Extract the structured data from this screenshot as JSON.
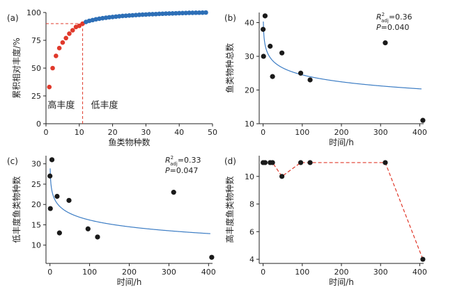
{
  "colors": {
    "red": "#e0392b",
    "blue": "#2d6fb7",
    "fit": "#3b7cc4",
    "dot": "#1a1a1a",
    "dash": "#e0392b"
  },
  "chart_data": [
    {
      "id": "a",
      "panel_label": "(a)",
      "type": "scatter",
      "xlabel": "鱼类物种数",
      "ylabel": "累积相对丰度/%",
      "xlim": [
        0,
        50
      ],
      "ylim": [
        0,
        100
      ],
      "xticks": [
        "0",
        "10",
        "20",
        "30",
        "40",
        "50"
      ],
      "yticks": [
        "0",
        "25",
        "50",
        "75",
        "100"
      ],
      "threshold": {
        "x": 11,
        "y": 90
      },
      "annotations": {
        "high": "高丰度",
        "low": "低丰度"
      },
      "series": [
        {
          "group": "high",
          "color": "#e0392b",
          "x": [
            1,
            2,
            3,
            4,
            5,
            6,
            7,
            8,
            9,
            10,
            11
          ],
          "y": [
            33,
            50,
            61,
            68,
            73,
            77,
            81,
            84,
            87,
            88,
            90
          ]
        },
        {
          "group": "low",
          "color": "#2d6fb7",
          "x": [
            12,
            13,
            14,
            15,
            16,
            17,
            18,
            19,
            20,
            21,
            22,
            23,
            24,
            25,
            26,
            27,
            28,
            29,
            30,
            31,
            32,
            33,
            34,
            35,
            36,
            37,
            38,
            39,
            40,
            41,
            42,
            43,
            44,
            45,
            46,
            47,
            48
          ],
          "y": [
            91.5,
            92.5,
            93.2,
            93.9,
            94.4,
            94.9,
            95.3,
            95.7,
            96.0,
            96.3,
            96.6,
            96.9,
            97.1,
            97.3,
            97.5,
            97.7,
            97.9,
            98.1,
            98.2,
            98.4,
            98.5,
            98.6,
            98.8,
            98.9,
            99.0,
            99.1,
            99.2,
            99.3,
            99.4,
            99.5,
            99.6,
            99.7,
            99.75,
            99.8,
            99.85,
            99.9,
            100
          ]
        }
      ]
    },
    {
      "id": "b",
      "panel_label": "(b)",
      "type": "scatter",
      "xlabel": "时间/h",
      "ylabel": "鱼类物种总数",
      "xlim": [
        -10,
        410
      ],
      "ylim": [
        10,
        43
      ],
      "xticks": [
        "0",
        "100",
        "200",
        "300",
        "400"
      ],
      "yticks": [
        "10",
        "20",
        "30",
        "40"
      ],
      "stat_r2": "0.36",
      "stat_p": "P=0.040",
      "points": {
        "x": [
          0,
          1,
          5,
          18,
          24,
          48,
          96,
          120,
          312,
          408
        ],
        "y": [
          38,
          30,
          42,
          33,
          24,
          31,
          25,
          23,
          34,
          11
        ]
      },
      "fit": {
        "a": 38.25,
        "b": -2.986
      }
    },
    {
      "id": "c",
      "panel_label": "(c)",
      "type": "scatter",
      "xlabel": "时间/h",
      "ylabel": "低丰度鱼类物种数",
      "xlim": [
        -10,
        410
      ],
      "ylim": [
        5.5,
        32
      ],
      "xticks": [
        "0",
        "100",
        "200",
        "300",
        "400"
      ],
      "yticks": [
        "10",
        "15",
        "20",
        "25",
        "30"
      ],
      "stat_r2": "0.33",
      "stat_p": "P=0.047",
      "points": {
        "x": [
          0,
          1,
          5,
          18,
          24,
          48,
          96,
          120,
          312,
          408
        ],
        "y": [
          27,
          19,
          31,
          22,
          13,
          21,
          14,
          12,
          23,
          7
        ]
      },
      "fit": {
        "a": 27.21,
        "b": -2.397
      }
    },
    {
      "id": "d",
      "panel_label": "(d)",
      "type": "line",
      "xlabel": "时间/h",
      "ylabel": "高丰度鱼类物种数",
      "xlim": [
        -10,
        410
      ],
      "ylim": [
        3.7,
        11.5
      ],
      "xticks": [
        "0",
        "100",
        "200",
        "300",
        "400"
      ],
      "yticks": [
        "4",
        "6",
        "8",
        "10"
      ],
      "points": {
        "x": [
          0,
          5,
          18,
          24,
          48,
          96,
          120,
          312,
          408
        ],
        "y": [
          11,
          11,
          11,
          11,
          10,
          11,
          11,
          11,
          4
        ]
      }
    }
  ]
}
